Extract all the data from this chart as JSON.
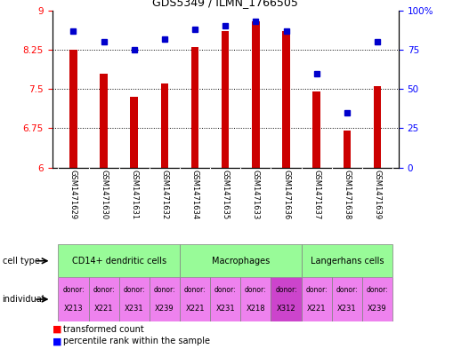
{
  "title": "GDS5349 / ILMN_1766505",
  "samples": [
    "GSM1471629",
    "GSM1471630",
    "GSM1471631",
    "GSM1471632",
    "GSM1471634",
    "GSM1471635",
    "GSM1471633",
    "GSM1471636",
    "GSM1471637",
    "GSM1471638",
    "GSM1471639"
  ],
  "transformed_count": [
    8.25,
    7.8,
    7.35,
    7.6,
    8.3,
    8.6,
    8.8,
    8.6,
    7.45,
    6.7,
    7.55
  ],
  "percentile_rank": [
    87,
    80,
    75,
    82,
    88,
    90,
    93,
    87,
    60,
    35,
    80
  ],
  "ylim_left": [
    6,
    9
  ],
  "ylim_right": [
    0,
    100
  ],
  "yticks_left": [
    6,
    6.75,
    7.5,
    8.25,
    9
  ],
  "yticks_right": [
    0,
    25,
    50,
    75,
    100
  ],
  "ytick_labels_left": [
    "6",
    "6.75",
    "7.5",
    "8.25",
    "9"
  ],
  "ytick_labels_right": [
    "0",
    "25",
    "50",
    "75",
    "100%"
  ],
  "cell_type_groups": [
    {
      "label": "CD14+ dendritic cells",
      "start": 0,
      "end": 4,
      "color": "#98FB98"
    },
    {
      "label": "Macrophages",
      "start": 4,
      "end": 8,
      "color": "#98FB98"
    },
    {
      "label": "Langerhans cells",
      "start": 8,
      "end": 11,
      "color": "#98FB98"
    }
  ],
  "individuals": [
    {
      "donor": "X213",
      "color": "#EE82EE"
    },
    {
      "donor": "X221",
      "color": "#EE82EE"
    },
    {
      "donor": "X231",
      "color": "#EE82EE"
    },
    {
      "donor": "X239",
      "color": "#EE82EE"
    },
    {
      "donor": "X221",
      "color": "#EE82EE"
    },
    {
      "donor": "X231",
      "color": "#EE82EE"
    },
    {
      "donor": "X218",
      "color": "#EE82EE"
    },
    {
      "donor": "X312",
      "color": "#CC44CC"
    },
    {
      "donor": "X221",
      "color": "#EE82EE"
    },
    {
      "donor": "X231",
      "color": "#EE82EE"
    },
    {
      "donor": "X239",
      "color": "#EE82EE"
    }
  ],
  "bar_color": "#CC0000",
  "dot_color": "#0000CC",
  "bar_base": 6,
  "bar_width": 0.25
}
